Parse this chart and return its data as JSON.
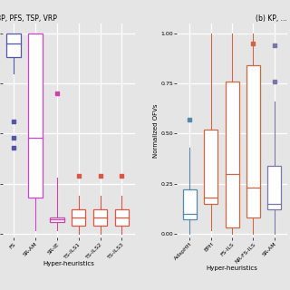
{
  "background_color": "#e5e5e5",
  "left_panel": {
    "title": "BP, PFS, TSP, VRP",
    "xlabel": "Hyper-heuristics",
    "ylim": [
      -0.02,
      1.05
    ],
    "yticks": [
      0.0,
      0.25,
      0.5,
      0.75,
      1.0
    ],
    "ytick_labels": [
      "",
      "",
      "",
      "",
      ""
    ],
    "categories": [
      "FS",
      "SR-AM",
      "SR-IE",
      "TS-ILS1",
      "TS-ILS2",
      "TS-ILS3"
    ],
    "box_specs": [
      {
        "x": 1,
        "q1": 0.88,
        "med": 0.95,
        "q3": 1.0,
        "wlo": 0.8,
        "whi": 1.0,
        "color": "#5555aa",
        "fliers_above": [],
        "fliers_below": [
          0.56,
          0.48,
          0.43
        ]
      },
      {
        "x": 2,
        "q1": 0.18,
        "med": 0.48,
        "q3": 1.0,
        "wlo": 0.02,
        "whi": 1.0,
        "color": "#cc44cc",
        "fliers_above": [],
        "fliers_below": []
      },
      {
        "x": 3,
        "q1": 0.06,
        "med": 0.07,
        "q3": 0.08,
        "wlo": 0.02,
        "whi": 0.28,
        "color": "#cc44aa",
        "fliers_above": [
          0.7
        ],
        "fliers_below": []
      },
      {
        "x": 4,
        "q1": 0.04,
        "med": 0.08,
        "q3": 0.12,
        "wlo": 0.0,
        "whi": 0.19,
        "color": "#dd5544",
        "fliers_above": [
          0.29
        ],
        "fliers_below": []
      },
      {
        "x": 5,
        "q1": 0.04,
        "med": 0.08,
        "q3": 0.12,
        "wlo": 0.0,
        "whi": 0.19,
        "color": "#dd5544",
        "fliers_above": [
          0.29
        ],
        "fliers_below": []
      },
      {
        "x": 6,
        "q1": 0.04,
        "med": 0.08,
        "q3": 0.12,
        "wlo": 0.0,
        "whi": 0.19,
        "color": "#dd5544",
        "fliers_above": [
          0.29
        ],
        "fliers_below": []
      }
    ]
  },
  "right_panel": {
    "title": "(b) KP, ...",
    "xlabel": "Hyper-heuristics",
    "ylabel": "Normalized OFVs",
    "ylim": [
      -0.02,
      1.05
    ],
    "yticks": [
      0.0,
      0.25,
      0.5,
      0.75,
      1.0
    ],
    "ytick_labels": [
      "0.00",
      "0.25",
      "0.50",
      "0.75",
      "1.00"
    ],
    "categories": [
      "AdapHH",
      "EPH",
      "FS-ILS",
      "NR-FS-ILS",
      "SR-AM"
    ],
    "box_specs": [
      {
        "x": 1,
        "q1": 0.07,
        "med": 0.1,
        "q3": 0.22,
        "wlo": 0.0,
        "whi": 0.43,
        "color": "#5588aa",
        "fliers_above": [
          0.57
        ],
        "fliers_below": []
      },
      {
        "x": 2,
        "q1": 0.15,
        "med": 0.18,
        "q3": 0.52,
        "wlo": 0.02,
        "whi": 1.0,
        "color": "#cc6644",
        "fliers_above": [],
        "fliers_below": []
      },
      {
        "x": 3,
        "q1": 0.03,
        "med": 0.3,
        "q3": 0.76,
        "wlo": 0.0,
        "whi": 1.0,
        "color": "#cc6644",
        "fliers_above": [],
        "fliers_below": []
      },
      {
        "x": 4,
        "q1": 0.08,
        "med": 0.23,
        "q3": 0.84,
        "wlo": 0.0,
        "whi": 1.0,
        "color": "#cc6644",
        "fliers_above": [
          0.95
        ],
        "fliers_below": []
      },
      {
        "x": 5,
        "q1": 0.12,
        "med": 0.15,
        "q3": 0.34,
        "wlo": 0.0,
        "whi": 0.66,
        "color": "#7777aa",
        "fliers_above": [
          0.76,
          0.94
        ],
        "fliers_below": []
      }
    ]
  }
}
